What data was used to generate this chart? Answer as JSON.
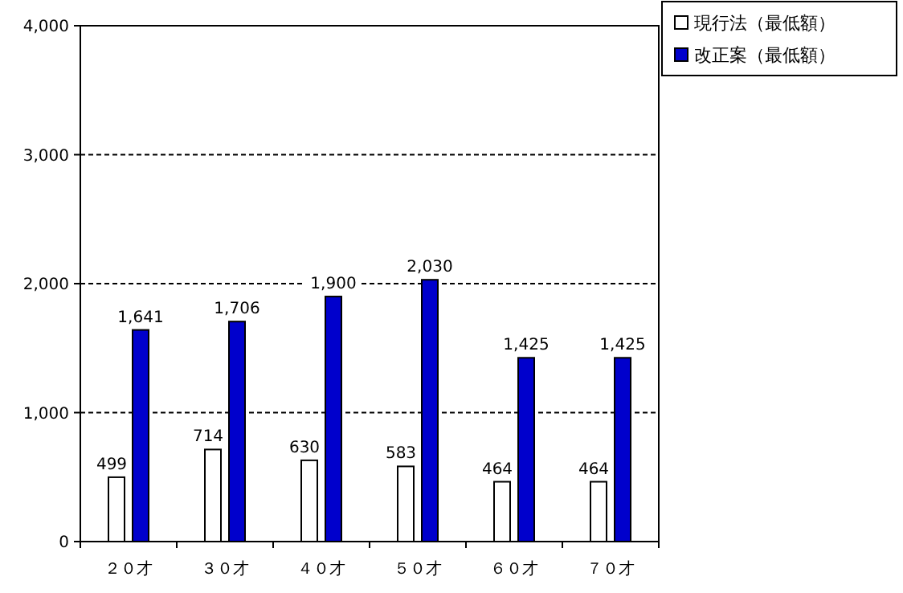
{
  "chart_data": {
    "type": "bar",
    "categories": [
      "２０才",
      "３０才",
      "４０才",
      "５０才",
      "６０才",
      "７０才"
    ],
    "series": [
      {
        "name": "現行法（最低額）",
        "color": "#ffffff",
        "values": [
          499,
          714,
          630,
          583,
          464,
          464
        ],
        "value_labels": [
          "499",
          "714",
          "630",
          "583",
          "464",
          "464"
        ]
      },
      {
        "name": "改正案（最低額）",
        "color": "#0000cc",
        "values": [
          1641,
          1706,
          1900,
          2030,
          1425,
          1425
        ],
        "value_labels": [
          "1,641",
          "1,706",
          "1,900",
          "2,030",
          "1,425",
          "1,425"
        ]
      }
    ],
    "ylim": [
      0,
      4000
    ],
    "yticks": [
      {
        "value": 0,
        "label": "0"
      },
      {
        "value": 1000,
        "label": "1,000"
      },
      {
        "value": 2000,
        "label": "2,000"
      },
      {
        "value": 3000,
        "label": "3,000"
      },
      {
        "value": 4000,
        "label": "4,000"
      }
    ],
    "grid": "y",
    "legend": "top right"
  }
}
